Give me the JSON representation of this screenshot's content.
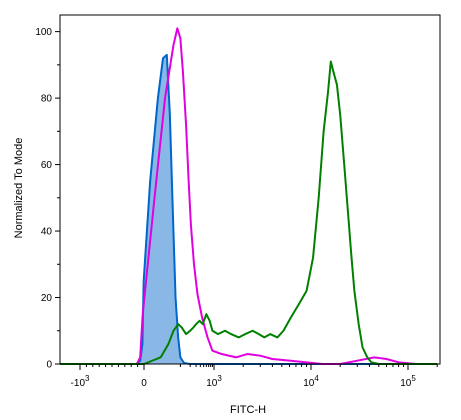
{
  "chart_data": {
    "type": "line",
    "title": "",
    "xlabel": "FITC-H",
    "ylabel": "Normalized To Mode",
    "xscale": "biexponential",
    "xlim": [
      -2000,
      200000
    ],
    "ylim": [
      0,
      105
    ],
    "grid": false,
    "legend": "none",
    "y_ticks": [
      {
        "value": 0,
        "label": "0"
      },
      {
        "value": 20,
        "label": "20"
      },
      {
        "value": 40,
        "label": "40"
      },
      {
        "value": 60,
        "label": "60"
      },
      {
        "value": 80,
        "label": "80"
      },
      {
        "value": 100,
        "label": "100"
      }
    ],
    "x_ticks": [
      {
        "value": -1000,
        "base": "-10",
        "exp": "3"
      },
      {
        "value": 0,
        "base": "0",
        "exp": ""
      },
      {
        "value": 1000,
        "base": "10",
        "exp": "3"
      },
      {
        "value": 10000,
        "base": "10",
        "exp": "4"
      },
      {
        "value": 100000,
        "base": "10",
        "exp": "5"
      }
    ],
    "series": [
      {
        "color": "#0066cc",
        "fill": "#8ab8e6",
        "filled": true,
        "points": [
          [
            -2000,
            0
          ],
          [
            -120,
            0
          ],
          [
            -60,
            1
          ],
          [
            -25,
            6
          ],
          [
            -5,
            25
          ],
          [
            5,
            55
          ],
          [
            15,
            80
          ],
          [
            25,
            92
          ],
          [
            35,
            93
          ],
          [
            45,
            75
          ],
          [
            55,
            50
          ],
          [
            70,
            20
          ],
          [
            85,
            8
          ],
          [
            100,
            2
          ],
          [
            130,
            0.3
          ],
          [
            200,
            0
          ],
          [
            200000,
            0
          ]
        ]
      },
      {
        "color": "#e000e0",
        "filled": false,
        "points": [
          [
            -2000,
            0
          ],
          [
            -110,
            0
          ],
          [
            -60,
            2
          ],
          [
            -20,
            15
          ],
          [
            10,
            50
          ],
          [
            30,
            80
          ],
          [
            60,
            96
          ],
          [
            80,
            101
          ],
          [
            100,
            98
          ],
          [
            120,
            88
          ],
          [
            150,
            72
          ],
          [
            180,
            55
          ],
          [
            210,
            42
          ],
          [
            260,
            30
          ],
          [
            330,
            21
          ],
          [
            450,
            14
          ],
          [
            650,
            8
          ],
          [
            900,
            4
          ],
          [
            1200,
            3
          ],
          [
            1700,
            2
          ],
          [
            2200,
            3
          ],
          [
            3000,
            2.5
          ],
          [
            4000,
            1.5
          ],
          [
            6000,
            1
          ],
          [
            9000,
            0.5
          ],
          [
            13000,
            0
          ],
          [
            20000,
            0
          ],
          [
            30000,
            1
          ],
          [
            45000,
            2
          ],
          [
            60000,
            1.5
          ],
          [
            80000,
            0.5
          ],
          [
            120000,
            0
          ],
          [
            200000,
            0
          ]
        ]
      },
      {
        "color": "#008000",
        "filled": false,
        "points": [
          [
            -2000,
            0
          ],
          [
            -20,
            0
          ],
          [
            0,
            0
          ],
          [
            20,
            2
          ],
          [
            40,
            6
          ],
          [
            60,
            10
          ],
          [
            85,
            12
          ],
          [
            110,
            11
          ],
          [
            150,
            9
          ],
          [
            200,
            10
          ],
          [
            250,
            11
          ],
          [
            300,
            12
          ],
          [
            380,
            13
          ],
          [
            470,
            12
          ],
          [
            600,
            15
          ],
          [
            750,
            13
          ],
          [
            900,
            10
          ],
          [
            1100,
            9
          ],
          [
            1300,
            10
          ],
          [
            1500,
            9
          ],
          [
            1800,
            8
          ],
          [
            2100,
            9
          ],
          [
            2500,
            10
          ],
          [
            2900,
            9
          ],
          [
            3300,
            8
          ],
          [
            3800,
            9
          ],
          [
            4500,
            8
          ],
          [
            5200,
            10
          ],
          [
            6200,
            14
          ],
          [
            7500,
            18
          ],
          [
            9000,
            22
          ],
          [
            10500,
            32
          ],
          [
            12000,
            50
          ],
          [
            13500,
            70
          ],
          [
            15000,
            82
          ],
          [
            16000,
            91
          ],
          [
            17000,
            88
          ],
          [
            18500,
            84
          ],
          [
            20000,
            75
          ],
          [
            22000,
            60
          ],
          [
            24000,
            46
          ],
          [
            26000,
            33
          ],
          [
            28000,
            22
          ],
          [
            31000,
            12
          ],
          [
            34000,
            5
          ],
          [
            38000,
            2
          ],
          [
            42000,
            0.5
          ],
          [
            50000,
            0
          ],
          [
            200000,
            0
          ]
        ]
      }
    ]
  }
}
